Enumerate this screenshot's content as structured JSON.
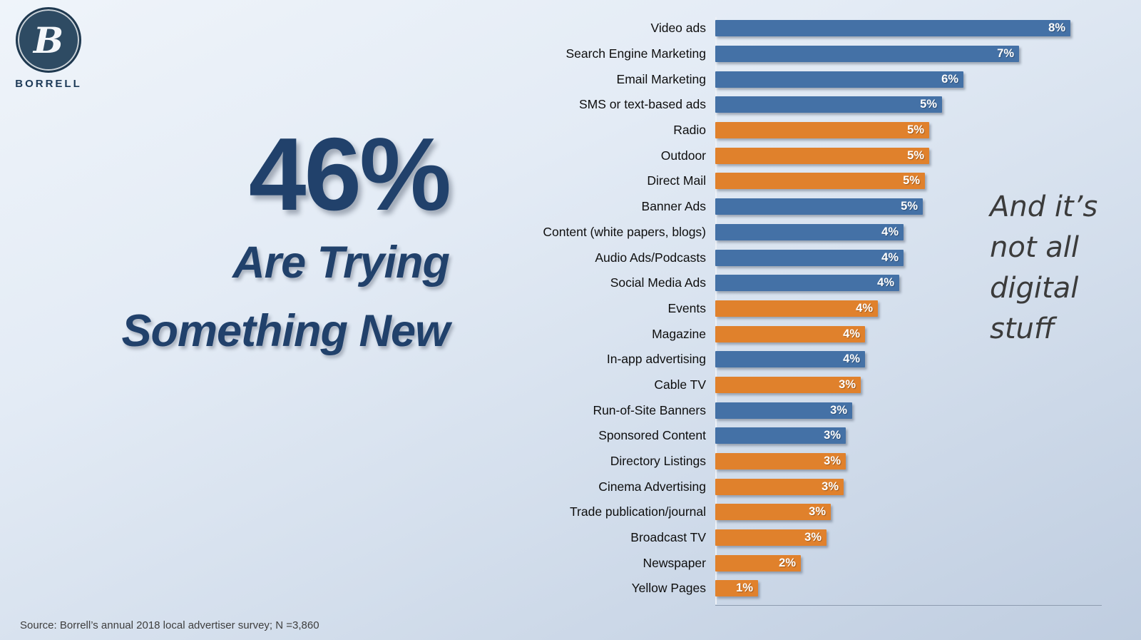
{
  "logo": {
    "monogram": "B",
    "brand": "BORRELL"
  },
  "headline": {
    "stat": "46%",
    "line1": "Are Trying",
    "line2": "Something New"
  },
  "annotation": {
    "lines": [
      "And it’s",
      "not all",
      "digital",
      "stuff"
    ]
  },
  "source": "Source:  Borrell’s annual 2018 local advertiser survey; N =3,860",
  "colors": {
    "headline_text": "#21416B",
    "annotation_text": "#3B3B3B",
    "background_top": "#EFF4FA",
    "background_bottom": "#BFCDE0"
  },
  "chart_data": {
    "type": "bar",
    "orientation": "horizontal",
    "value_suffix": "%",
    "xlim": [
      0,
      9
    ],
    "grid": false,
    "legend": "none",
    "bar_colors": {
      "blue": "#4471A6",
      "orange": "#E0812C"
    },
    "items": [
      {
        "label": "Video ads",
        "display": "8%",
        "value": 8.3,
        "color": "blue"
      },
      {
        "label": "Search Engine Marketing",
        "display": "7%",
        "value": 7.1,
        "color": "blue"
      },
      {
        "label": "Email Marketing",
        "display": "6%",
        "value": 5.8,
        "color": "blue"
      },
      {
        "label": "SMS or text-based ads",
        "display": "5%",
        "value": 5.3,
        "color": "blue"
      },
      {
        "label": "Radio",
        "display": "5%",
        "value": 5.0,
        "color": "orange"
      },
      {
        "label": "Outdoor",
        "display": "5%",
        "value": 5.0,
        "color": "orange"
      },
      {
        "label": "Direct Mail",
        "display": "5%",
        "value": 4.9,
        "color": "orange"
      },
      {
        "label": "Banner Ads",
        "display": "5%",
        "value": 4.85,
        "color": "blue"
      },
      {
        "label": "Content (white papers, blogs)",
        "display": "4%",
        "value": 4.4,
        "color": "blue"
      },
      {
        "label": "Audio Ads/Podcasts",
        "display": "4%",
        "value": 4.4,
        "color": "blue"
      },
      {
        "label": "Social Media Ads",
        "display": "4%",
        "value": 4.3,
        "color": "blue"
      },
      {
        "label": "Events",
        "display": "4%",
        "value": 3.8,
        "color": "orange"
      },
      {
        "label": "Magazine",
        "display": "4%",
        "value": 3.5,
        "color": "orange"
      },
      {
        "label": "In-app advertising",
        "display": "4%",
        "value": 3.5,
        "color": "blue"
      },
      {
        "label": "Cable TV",
        "display": "3%",
        "value": 3.4,
        "color": "orange"
      },
      {
        "label": "Run-of-Site Banners",
        "display": "3%",
        "value": 3.2,
        "color": "blue"
      },
      {
        "label": "Sponsored Content",
        "display": "3%",
        "value": 3.05,
        "color": "blue"
      },
      {
        "label": "Directory Listings",
        "display": "3%",
        "value": 3.05,
        "color": "orange"
      },
      {
        "label": "Cinema Advertising",
        "display": "3%",
        "value": 3.0,
        "color": "orange"
      },
      {
        "label": "Trade publication/journal",
        "display": "3%",
        "value": 2.7,
        "color": "orange"
      },
      {
        "label": "Broadcast TV",
        "display": "3%",
        "value": 2.6,
        "color": "orange"
      },
      {
        "label": "Newspaper",
        "display": "2%",
        "value": 2.0,
        "color": "orange"
      },
      {
        "label": "Yellow Pages",
        "display": "1%",
        "value": 1.0,
        "color": "orange"
      }
    ]
  }
}
